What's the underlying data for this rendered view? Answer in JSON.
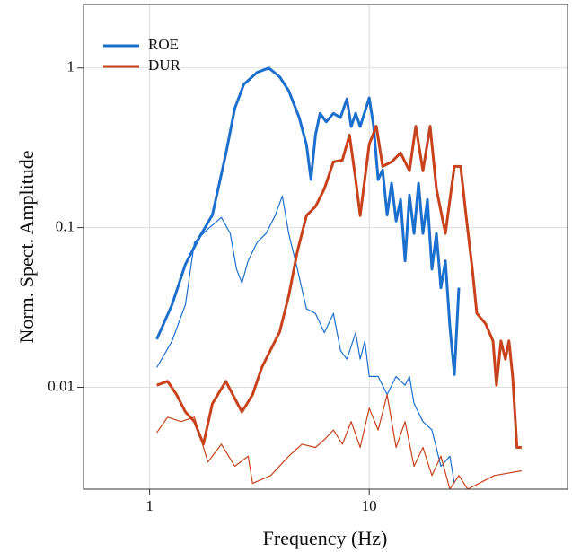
{
  "chart_data": {
    "type": "line",
    "xlabel": "Frequency (Hz)",
    "ylabel": "Norm. Spect. Amplitude",
    "xscale": "log",
    "yscale": "log",
    "xlim": [
      0.5,
      80
    ],
    "ylim": [
      0.0023,
      2.5
    ],
    "xticks": [
      1,
      10
    ],
    "yticks": [
      0.01,
      0.1,
      1
    ],
    "grid": true,
    "legend": "upper left",
    "series": [
      {
        "name": "ROE",
        "color": "#1c6fcc",
        "linewidth": 3,
        "x": [
          1.078,
          1.265,
          1.456,
          1.677,
          1.931,
          2.223,
          2.443,
          2.685,
          3.09,
          3.49,
          3.91,
          4.3,
          4.8,
          5.18,
          5.43,
          5.69,
          5.97,
          6.37,
          6.87,
          7.4,
          7.91,
          8.28,
          8.68,
          9.1,
          10,
          10.48,
          10.98,
          11.51,
          12.07,
          12.65,
          13.26,
          13.9,
          14.56,
          15.26,
          16,
          16.77,
          17.57,
          18.42,
          19.31,
          20.24,
          21.21,
          22.23,
          23.3,
          24.42,
          25.6
        ],
        "values": [
          0.02,
          0.033,
          0.059,
          0.086,
          0.12,
          0.29,
          0.56,
          0.79,
          0.94,
          1.0,
          0.88,
          0.72,
          0.49,
          0.33,
          0.2,
          0.38,
          0.52,
          0.46,
          0.52,
          0.49,
          0.64,
          0.43,
          0.52,
          0.43,
          0.65,
          0.43,
          0.2,
          0.23,
          0.12,
          0.19,
          0.11,
          0.15,
          0.062,
          0.16,
          0.092,
          0.19,
          0.092,
          0.15,
          0.055,
          0.092,
          0.042,
          0.062,
          0.024,
          0.012,
          0.042
        ]
      },
      {
        "color": "#1c6fcc",
        "linewidth": 1.2,
        "x": [
          1.078,
          1.265,
          1.456,
          1.6,
          1.842,
          2.121,
          2.33,
          2.488,
          2.633,
          2.81,
          3.09,
          3.39,
          3.73,
          4.02,
          4.3,
          4.71,
          5.18,
          5.69,
          6.25,
          6.87,
          7.4,
          7.91,
          8.68,
          9.1,
          9.55,
          10,
          10.98,
          12.07,
          13.26,
          14.56,
          15.26,
          16,
          17.57,
          19.31,
          21.21,
          23.3,
          24.42
        ],
        "values": [
          0.0133,
          0.0195,
          0.033,
          0.081,
          0.098,
          0.116,
          0.092,
          0.055,
          0.045,
          0.062,
          0.081,
          0.092,
          0.119,
          0.158,
          0.092,
          0.055,
          0.031,
          0.029,
          0.022,
          0.029,
          0.017,
          0.015,
          0.022,
          0.015,
          0.0195,
          0.0117,
          0.0117,
          0.009,
          0.0117,
          0.0103,
          0.0117,
          0.0079,
          0.0061,
          0.0054,
          0.0032,
          0.0037,
          0.0025
        ]
      },
      {
        "name": "DUR",
        "color": "#c8421c",
        "linewidth": 3,
        "x": [
          1.078,
          1.207,
          1.326,
          1.456,
          1.6,
          1.758,
          1.931,
          2.223,
          2.443,
          2.633,
          2.945,
          3.24,
          3.56,
          3.91,
          4.3,
          4.71,
          5.18,
          5.69,
          6.25,
          6.87,
          7.55,
          8.13,
          8.68,
          9.1,
          10,
          10.78,
          11.51,
          12.65,
          13.9,
          15.26,
          16.3,
          17.57,
          18.95,
          20.24,
          22.23,
          24.42,
          26.1,
          27.6,
          29.5,
          30.9,
          33.9,
          36.6,
          38.0,
          39.8,
          41.7,
          43.3,
          45.0,
          47.1,
          49.4
        ],
        "values": [
          0.0103,
          0.0109,
          0.009,
          0.007,
          0.0061,
          0.0044,
          0.0079,
          0.0109,
          0.0085,
          0.007,
          0.009,
          0.0133,
          0.0172,
          0.0222,
          0.0373,
          0.0711,
          0.119,
          0.1355,
          0.175,
          0.258,
          0.265,
          0.38,
          0.2,
          0.119,
          0.334,
          0.432,
          0.242,
          0.258,
          0.294,
          0.227,
          0.432,
          0.227,
          0.432,
          0.175,
          0.092,
          0.242,
          0.242,
          0.119,
          0.055,
          0.029,
          0.025,
          0.0195,
          0.0103,
          0.0195,
          0.015,
          0.0195,
          0.0117,
          0.0042,
          0.0042
        ]
      },
      {
        "color": "#c8421c",
        "linewidth": 1.2,
        "x": [
          1.078,
          1.207,
          1.39,
          1.6,
          1.842,
          2.121,
          2.443,
          2.81,
          2.945,
          3.56,
          4.3,
          4.94,
          5.69,
          6.25,
          6.87,
          7.55,
          8.28,
          9.1,
          10,
          10.98,
          12.07,
          13.26,
          14.56,
          16,
          17.57,
          19.31,
          21.21,
          23.3,
          25.6,
          28.1,
          37.1,
          49.4
        ],
        "values": [
          0.0052,
          0.0065,
          0.0061,
          0.0065,
          0.0034,
          0.0044,
          0.0032,
          0.0037,
          0.0025,
          0.0028,
          0.0037,
          0.0044,
          0.0042,
          0.0047,
          0.0054,
          0.0044,
          0.0061,
          0.0042,
          0.0074,
          0.0054,
          0.009,
          0.0042,
          0.0061,
          0.0032,
          0.0042,
          0.0028,
          0.0037,
          0.0023,
          0.0028,
          0.0023,
          0.0028,
          0.003
        ]
      }
    ]
  }
}
